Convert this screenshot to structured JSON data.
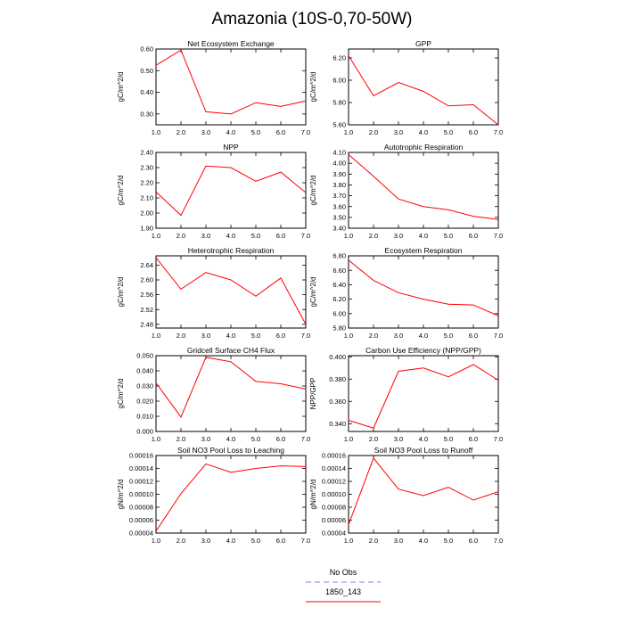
{
  "figure_title": "Amazonia (10S-0,70-50W)",
  "legend": {
    "entries": [
      {
        "label": "No Obs",
        "color": "#8080ff",
        "dashed": true
      },
      {
        "label": "1850_143",
        "color": "#ff0000",
        "dashed": false
      }
    ]
  },
  "colors": {
    "series": "#ff0000",
    "axis": "#000000",
    "background": "#ffffff"
  },
  "chart_data": [
    {
      "type": "line",
      "title": "Net Ecosystem Exchange",
      "ylabel": "gC/m^2/d",
      "x": [
        1,
        2,
        3,
        4,
        5,
        6,
        7
      ],
      "xlim": [
        1,
        7
      ],
      "xticks": [
        "1.0",
        "2.0",
        "3.0",
        "4.0",
        "5.0",
        "6.0",
        "7.0"
      ],
      "ylim": [
        0.25,
        0.6
      ],
      "yticks": [
        0.3,
        0.4,
        0.5,
        0.6
      ],
      "ytick_labels": [
        "0.30",
        "0.40",
        "0.50",
        "0.60"
      ],
      "series": [
        {
          "name": "1850_143",
          "values": [
            0.525,
            0.595,
            0.31,
            0.3,
            0.352,
            0.335,
            0.36
          ]
        }
      ]
    },
    {
      "type": "line",
      "title": "GPP",
      "ylabel": "gC/m^2/d",
      "x": [
        1,
        2,
        3,
        4,
        5,
        6,
        7
      ],
      "xlim": [
        1,
        7
      ],
      "xticks": [
        "1.0",
        "2.0",
        "3.0",
        "4.0",
        "5.0",
        "6.0",
        "7.0"
      ],
      "ylim": [
        5.6,
        6.28
      ],
      "yticks": [
        5.6,
        5.8,
        6.0,
        6.2
      ],
      "ytick_labels": [
        "5.60",
        "5.80",
        "6.00",
        "6.20"
      ],
      "series": [
        {
          "name": "1850_143",
          "values": [
            6.22,
            5.86,
            5.98,
            5.9,
            5.77,
            5.78,
            5.6
          ]
        }
      ]
    },
    {
      "type": "line",
      "title": "NPP",
      "ylabel": "gC/m^2/d",
      "x": [
        1,
        2,
        3,
        4,
        5,
        6,
        7
      ],
      "xlim": [
        1,
        7
      ],
      "xticks": [
        "1.0",
        "2.0",
        "3.0",
        "4.0",
        "5.0",
        "6.0",
        "7.0"
      ],
      "ylim": [
        1.9,
        2.4
      ],
      "yticks": [
        1.9,
        2.0,
        2.1,
        2.2,
        2.3,
        2.4
      ],
      "ytick_labels": [
        "1.90",
        "2.00",
        "2.10",
        "2.20",
        "2.30",
        "2.40"
      ],
      "series": [
        {
          "name": "1850_143",
          "values": [
            2.14,
            1.985,
            2.31,
            2.3,
            2.21,
            2.27,
            2.135
          ]
        }
      ]
    },
    {
      "type": "line",
      "title": "Autotrophic Respiration",
      "ylabel": "gC/m^2/d",
      "x": [
        1,
        2,
        3,
        4,
        5,
        6,
        7
      ],
      "xlim": [
        1,
        7
      ],
      "xticks": [
        "1.0",
        "2.0",
        "3.0",
        "4.0",
        "5.0",
        "6.0",
        "7.0"
      ],
      "ylim": [
        3.4,
        4.1
      ],
      "yticks": [
        3.4,
        3.5,
        3.6,
        3.7,
        3.8,
        3.9,
        4.0,
        4.1
      ],
      "ytick_labels": [
        "3.40",
        "3.50",
        "3.60",
        "3.70",
        "3.80",
        "3.90",
        "4.00",
        "4.10"
      ],
      "series": [
        {
          "name": "1850_143",
          "values": [
            4.08,
            3.88,
            3.67,
            3.6,
            3.57,
            3.51,
            3.48
          ]
        }
      ]
    },
    {
      "type": "line",
      "title": "Heterotrophic Respiration",
      "ylabel": "gC/m^2/d",
      "x": [
        1,
        2,
        3,
        4,
        5,
        6,
        7
      ],
      "xlim": [
        1,
        7
      ],
      "xticks": [
        "1.0",
        "2.0",
        "3.0",
        "4.0",
        "5.0",
        "6.0",
        "7.0"
      ],
      "ylim": [
        2.47,
        2.665
      ],
      "yticks": [
        2.48,
        2.52,
        2.56,
        2.6,
        2.64
      ],
      "ytick_labels": [
        "2.48",
        "2.52",
        "2.56",
        "2.60",
        "2.64"
      ],
      "series": [
        {
          "name": "1850_143",
          "values": [
            2.66,
            2.575,
            2.62,
            2.6,
            2.556,
            2.605,
            2.48
          ]
        }
      ]
    },
    {
      "type": "line",
      "title": "Ecosystem Respiration",
      "ylabel": "gC/m^2/d",
      "x": [
        1,
        2,
        3,
        4,
        5,
        6,
        7
      ],
      "xlim": [
        1,
        7
      ],
      "xticks": [
        "1.0",
        "2.0",
        "3.0",
        "4.0",
        "5.0",
        "6.0",
        "7.0"
      ],
      "ylim": [
        5.8,
        6.8
      ],
      "yticks": [
        5.8,
        6.0,
        6.2,
        6.4,
        6.6,
        6.8
      ],
      "ytick_labels": [
        "5.80",
        "6.00",
        "6.20",
        "6.40",
        "6.60",
        "6.80"
      ],
      "series": [
        {
          "name": "1850_143",
          "values": [
            6.74,
            6.46,
            6.29,
            6.2,
            6.13,
            6.12,
            5.97
          ]
        }
      ]
    },
    {
      "type": "line",
      "title": "Gridcell Surface CH4 Flux",
      "ylabel": "gC/m^2/d",
      "x": [
        1,
        2,
        3,
        4,
        5,
        6,
        7
      ],
      "xlim": [
        1,
        7
      ],
      "xticks": [
        "1.0",
        "2.0",
        "3.0",
        "4.0",
        "5.0",
        "6.0",
        "7.0"
      ],
      "ylim": [
        0,
        0.05
      ],
      "yticks": [
        0,
        0.01,
        0.02,
        0.03,
        0.04,
        0.05
      ],
      "ytick_labels": [
        "0.000",
        "0.010",
        "0.020",
        "0.030",
        "0.040",
        "0.050"
      ],
      "series": [
        {
          "name": "1850_143",
          "values": [
            0.032,
            0.0095,
            0.049,
            0.046,
            0.033,
            0.0315,
            0.028
          ]
        }
      ]
    },
    {
      "type": "line",
      "title": "Carbon Use Efficiency (NPP/GPP)",
      "ylabel": "NPP/GPP",
      "x": [
        1,
        2,
        3,
        4,
        5,
        6,
        7
      ],
      "xlim": [
        1,
        7
      ],
      "xticks": [
        "1.0",
        "2.0",
        "3.0",
        "4.0",
        "5.0",
        "6.0",
        "7.0"
      ],
      "ylim": [
        0.333,
        0.401
      ],
      "yticks": [
        0.34,
        0.36,
        0.38,
        0.4
      ],
      "ytick_labels": [
        "0.340",
        "0.360",
        "0.380",
        "0.400"
      ],
      "series": [
        {
          "name": "1850_143",
          "values": [
            0.343,
            0.336,
            0.387,
            0.39,
            0.382,
            0.393,
            0.379
          ]
        }
      ]
    },
    {
      "type": "line",
      "title": "Soil NO3 Pool Loss to Leaching",
      "ylabel": "gN/m^2/d",
      "x": [
        1,
        2,
        3,
        4,
        5,
        6,
        7
      ],
      "xlim": [
        1,
        7
      ],
      "xticks": [
        "1.0",
        "2.0",
        "3.0",
        "4.0",
        "5.0",
        "6.0",
        "7.0"
      ],
      "ylim": [
        4e-05,
        0.00016
      ],
      "yticks": [
        4e-05,
        6e-05,
        8e-05,
        0.0001,
        0.00012,
        0.00014,
        0.00016
      ],
      "ytick_labels": [
        "0.00004",
        "0.00006",
        "0.00008",
        "0.00010",
        "0.00012",
        "0.00014",
        "0.00016"
      ],
      "series": [
        {
          "name": "1850_143",
          "values": [
            4.3e-05,
            0.000101,
            0.000147,
            0.000134,
            0.00014,
            0.000144,
            0.000143
          ]
        }
      ]
    },
    {
      "type": "line",
      "title": "Soil NO3 Pool Loss to Runoff",
      "ylabel": "gN/m^2/d",
      "x": [
        1,
        2,
        3,
        4,
        5,
        6,
        7
      ],
      "xlim": [
        1,
        7
      ],
      "xticks": [
        "1.0",
        "2.0",
        "3.0",
        "4.0",
        "5.0",
        "6.0",
        "7.0"
      ],
      "ylim": [
        4e-05,
        0.00016
      ],
      "yticks": [
        4e-05,
        6e-05,
        8e-05,
        0.0001,
        0.00012,
        0.00014,
        0.00016
      ],
      "ytick_labels": [
        "0.00004",
        "0.00006",
        "0.00008",
        "0.00010",
        "0.00012",
        "0.00014",
        "0.00016"
      ],
      "series": [
        {
          "name": "1850_143",
          "values": [
            5.3e-05,
            0.000156,
            0.000108,
            9.8e-05,
            0.000111,
            9.1e-05,
            0.000104
          ]
        }
      ]
    }
  ]
}
